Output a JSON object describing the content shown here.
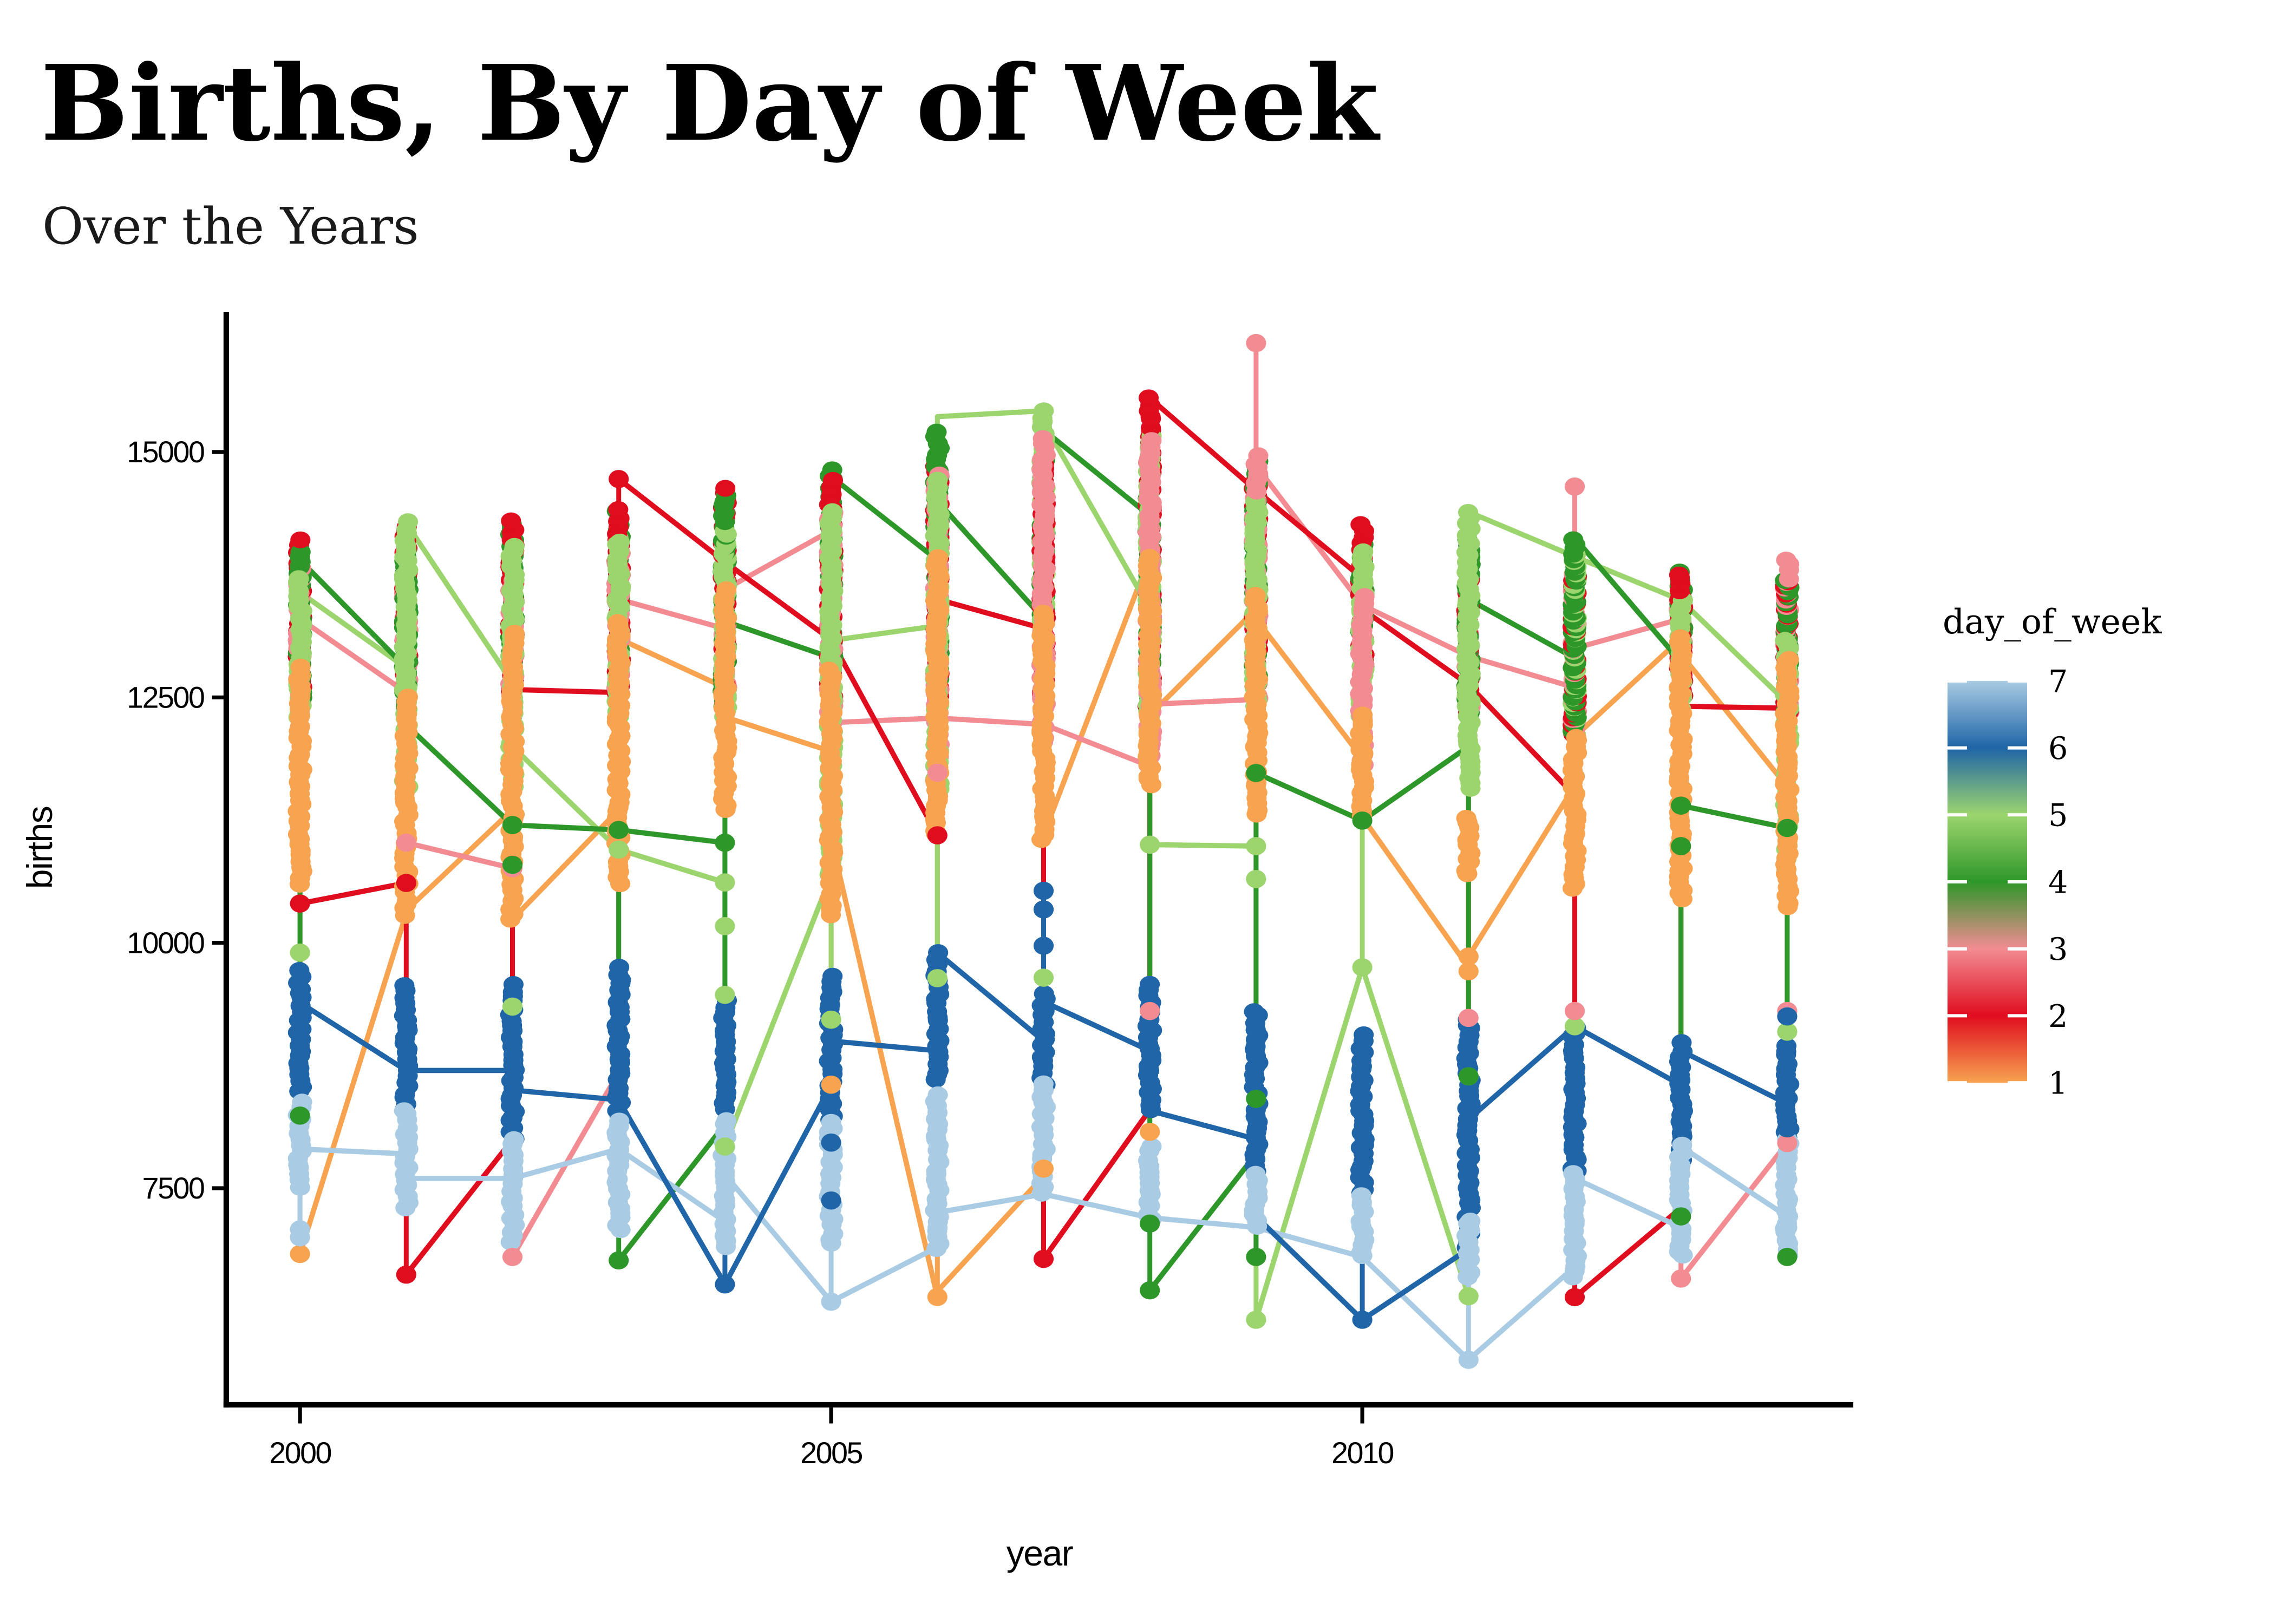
{
  "title": "Births, By Day of Week",
  "subtitle": "Over the Years",
  "axes": {
    "x_label": "year",
    "y_label": "births",
    "x_ticks": [
      2000,
      2005,
      2010
    ],
    "y_ticks": [
      7500,
      10000,
      12500,
      15000
    ],
    "x_range": [
      1999.3,
      2014.7
    ],
    "y_range": [
      5300,
      16400
    ],
    "grid": "off"
  },
  "legend": {
    "title": "day_of_week",
    "ticks": [
      7,
      6,
      5,
      4,
      3,
      2,
      1
    ],
    "position": "right",
    "type": "continuous-colorbar"
  },
  "colors": {
    "day1": "#F7A350",
    "day2": "#E00D1F",
    "day3": "#F28C92",
    "day4": "#2E9729",
    "day5": "#9CD56E",
    "day6": "#1F65A7",
    "day7": "#A9CBE3",
    "axis": "#000000",
    "background": "#FFFFFF"
  },
  "chart_data": {
    "type": "scatter",
    "overlay": "line",
    "title": "Births, By Day of Week",
    "xlabel": "year",
    "ylabel": "births",
    "x": [
      2000,
      2001,
      2002,
      2003,
      2004,
      2005,
      2006,
      2007,
      2008,
      2009,
      2010,
      2011,
      2012,
      2013,
      2014
    ],
    "series": [
      {
        "name": "1",
        "day": 1,
        "color_key": "day1",
        "bands": [
          [
            10600,
            12800
          ],
          [
            10280,
            12500
          ],
          [
            10240,
            13150
          ],
          [
            10600,
            13260
          ],
          [
            11355,
            13580
          ],
          [
            10280,
            12760
          ],
          [
            11100,
            13940
          ],
          [
            11045,
            13375
          ],
          [
            11600,
            13935
          ],
          [
            11300,
            13530
          ],
          [
            11280,
            12330
          ],
          [
            10690,
            11280
          ],
          [
            10540,
            12110
          ],
          [
            10430,
            13120
          ],
          [
            10350,
            12900
          ]
        ],
        "dots": [
          [
            6830
          ],
          [],
          [],
          [],
          [],
          [
            8555
          ],
          [
            6392
          ],
          [
            7700
          ],
          [
            8075
          ],
          [],
          [],
          [
            9710,
            9860
          ],
          [],
          [],
          []
        ],
        "first": [
          12000,
          10300,
          11355,
          11355,
          12600,
          11950,
          6392,
          7625,
          13935,
          13400,
          11880,
          9750,
          11600,
          13100,
          11590
        ],
        "last": [
          6830,
          10330,
          10240,
          13100,
          12300,
          11063,
          6450,
          11100,
          12320,
          13300,
          11280,
          9860,
          12100,
          12940,
          11590
        ],
        "extra_diagonals": []
      },
      {
        "name": "2",
        "day": 2,
        "color_key": "day2",
        "bands": [
          [
            12550,
            14100
          ],
          [
            12630,
            14250
          ],
          [
            12550,
            14280
          ],
          [
            12550,
            14400
          ],
          [
            12400,
            14650
          ],
          [
            12450,
            14700
          ],
          [
            12400,
            14850
          ],
          [
            12500,
            14880
          ],
          [
            12400,
            15550
          ],
          [
            12630,
            14725
          ],
          [
            12800,
            14250
          ],
          [
            12330,
            13680
          ],
          [
            12110,
            13755
          ],
          [
            12500,
            13760
          ],
          [
            12330,
            13680
          ]
        ],
        "dots": [
          [
            10400
          ],
          [
            10610,
            6620
          ],
          [],
          [
            14725
          ],
          [],
          [],
          [
            11095
          ],
          [
            6780
          ],
          [],
          [],
          [],
          [],
          [
            6390
          ],
          [],
          []
        ],
        "first": [
          13300,
          10610,
          7995,
          12550,
          13880,
          13087,
          11095,
          13200,
          8300,
          14610,
          13715,
          12630,
          11500,
          7300,
          12390
        ],
        "last": [
          10400,
          6620,
          12580,
          14725,
          13880,
          13087,
          13500,
          6780,
          15550,
          14610,
          13400,
          12630,
          6390,
          12410,
          12390
        ],
        "extra_diagonals": []
      },
      {
        "name": "3",
        "day": 3,
        "color_key": "day3",
        "bands": [
          [
            12450,
            13815
          ],
          [
            12550,
            13680
          ],
          [
            12300,
            13700
          ],
          [
            12500,
            14100
          ],
          [
            12600,
            13900
          ],
          [
            12240,
            14380
          ],
          [
            11730,
            14760
          ],
          [
            12040,
            15150
          ],
          [
            11800,
            15100
          ],
          [
            12480,
            14950
          ],
          [
            11800,
            13530
          ],
          [
            12330,
            13680
          ],
          [
            12110,
            13755
          ],
          [
            12900,
            13760
          ],
          [
            12330,
            13900
          ]
        ],
        "dots": [
          [],
          [
            11020
          ],
          [
            10760,
            6800
          ],
          [],
          [],
          [],
          [
            11733
          ],
          [],
          [
            9305
          ],
          [
            16110
          ],
          [],
          [
            9235
          ],
          [
            14648,
            9305
          ],
          [
            6580
          ],
          [
            9305,
            7960
          ]
        ],
        "first": [
          13400,
          12550,
          10760,
          8680,
          13200,
          14200,
          12290,
          12225,
          11800,
          12480,
          13440,
          12920,
          12600,
          13300,
          7960
        ],
        "last": [
          13300,
          11020,
          6800,
          13500,
          13600,
          12243,
          12290,
          12225,
          12430,
          14860,
          13440,
          12920,
          13000,
          6580,
          13900
        ],
        "extra_diagonals": []
      },
      {
        "name": "4",
        "day": 4,
        "color_key": "day4",
        "bands": [
          [
            12500,
            14000
          ],
          [
            12220,
            14010
          ],
          [
            12860,
            14280
          ],
          [
            12860,
            14390
          ],
          [
            12400,
            14560
          ],
          [
            12905,
            14824
          ],
          [
            12400,
            15200
          ],
          [
            13300,
            14900
          ],
          [
            12400,
            14600
          ],
          [
            12600,
            14910
          ],
          [
            12800,
            14050
          ],
          [
            12330,
            14100
          ],
          [
            12110,
            14125
          ],
          [
            12860,
            13760
          ],
          [
            12330,
            13680
          ]
        ],
        "dots": [
          [
            8240
          ],
          [],
          [
            11200,
            10795
          ],
          [
            11150,
            6765
          ],
          [
            11020
          ],
          [],
          [],
          [],
          [
            6460,
            7140
          ],
          [
            11730,
            8410,
            6800
          ],
          [
            11245
          ],
          [
            8640
          ],
          [],
          [
            11398,
            10985,
            7213
          ],
          [
            11170,
            6800
          ]
        ],
        "first": [
          13900,
          12800,
          11200,
          11150,
          8150,
          12905,
          13900,
          13300,
          14350,
          7850,
          11245,
          12000,
          12900,
          12860,
          11170
        ],
        "last": [
          13900,
          12220,
          11200,
          6765,
          13275,
          14750,
          14500,
          15225,
          6460,
          11730,
          11245,
          13500,
          14125,
          11398,
          6800
        ],
        "extra_diagonals": [
          [
            2003,
            11150,
            11020
          ]
        ]
      },
      {
        "name": "5",
        "day": 5,
        "color_key": "day5",
        "bands": [
          [
            12300,
            13720
          ],
          [
            11590,
            14275
          ],
          [
            11590,
            14050
          ],
          [
            12300,
            14100
          ],
          [
            12300,
            14200
          ],
          [
            10690,
            14380
          ],
          [
            11560,
            14700
          ],
          [
            12890,
            15420
          ],
          [
            12300,
            15150
          ],
          [
            12400,
            14500
          ],
          [
            12300,
            14000
          ],
          [
            11560,
            14390
          ],
          [
            12110,
            13935
          ],
          [
            12365,
            13490
          ],
          [
            10835,
            13100
          ]
        ],
        "dots": [
          [
            9900
          ],
          [],
          [
            9350
          ],
          [
            10950
          ],
          [
            10615,
            10170,
            9470,
            7925
          ],
          [
            9217
          ],
          [
            9640
          ],
          [
            9645
          ],
          [
            11000
          ],
          [
            10985,
            10650,
            6160
          ],
          [
            9750
          ],
          [
            6400,
            8640
          ],
          [
            9150
          ],
          [],
          [
            9095
          ]
        ],
        "first": [
          13570,
          12800,
          12650,
          10950,
          10615,
          10690,
          13230,
          15420,
          13400,
          10985,
          9750,
          6400,
          13935,
          13490,
          12445
        ],
        "last": [
          13570,
          14275,
          12000,
          10950,
          7925,
          13080,
          15360,
          15300,
          11000,
          6160,
          9750,
          14390,
          13935,
          13490,
          10835
        ],
        "extra_diagonals": []
      },
      {
        "name": "6",
        "day": 6,
        "color_key": "day6",
        "bands": [
          [
            8490,
            9720
          ],
          [
            8300,
            9560
          ],
          [
            8000,
            9570
          ],
          [
            8190,
            9750
          ],
          [
            8300,
            9400
          ],
          [
            8190,
            9660
          ],
          [
            8600,
            9900
          ],
          [
            8545,
            9500
          ],
          [
            8290,
            9570
          ],
          [
            7660,
            9305
          ],
          [
            7440,
            9045
          ],
          [
            6880,
            9235
          ],
          [
            7660,
            9150
          ],
          [
            7770,
            8965
          ],
          [
            7995,
            8965
          ]
        ],
        "dots": [
          [],
          [],
          [],
          [],
          [
            6520
          ],
          [
            7965,
            7375
          ],
          [],
          [
            10530,
            10340,
            9970
          ],
          [],
          [],
          [
            6160
          ],
          [],
          [],
          [],
          [
            9250,
            8110
          ]
        ],
        "first": [
          9400,
          8700,
          8700,
          8400,
          6520,
          8550,
          8900,
          9000,
          8900,
          8000,
          6160,
          6880,
          9150,
          8550,
          8360
        ],
        "last": [
          9390,
          8700,
          8500,
          8400,
          6520,
          9000,
          9900,
          9400,
          8290,
          7212,
          6160,
          8200,
          9150,
          8900,
          8300
        ],
        "extra_diagonals": []
      },
      {
        "name": "7",
        "day": 7,
        "color_key": "day7",
        "bands": [
          [
            7510,
            8370
          ],
          [
            7300,
            8300
          ],
          [
            6950,
            8000
          ],
          [
            7075,
            8190
          ],
          [
            6900,
            8200
          ],
          [
            6934,
            8186
          ],
          [
            6878,
            8450
          ],
          [
            7440,
            8545
          ],
          [
            7175,
            7925
          ],
          [
            7100,
            7660
          ],
          [
            6800,
            7440
          ],
          [
            6580,
            7180
          ],
          [
            6580,
            7660
          ],
          [
            6800,
            7925
          ],
          [
            6800,
            7995
          ]
        ],
        "dots": [
          [
            7080,
            7000
          ],
          [],
          [],
          [],
          [],
          [
            6344
          ],
          [],
          [],
          [],
          [],
          [],
          [
            5752
          ],
          [],
          [],
          [
            7100
          ]
        ],
        "first": [
          8000,
          7850,
          7600,
          7900,
          7160,
          6344,
          6900,
          7440,
          7200,
          7100,
          6800,
          5752,
          6700,
          7100,
          7213
        ],
        "last": [
          7900,
          7600,
          7600,
          7900,
          7640,
          6344,
          7253,
          7440,
          7200,
          7100,
          6800,
          5752,
          7600,
          7925,
          7100
        ],
        "extra_diagonals": []
      }
    ]
  }
}
